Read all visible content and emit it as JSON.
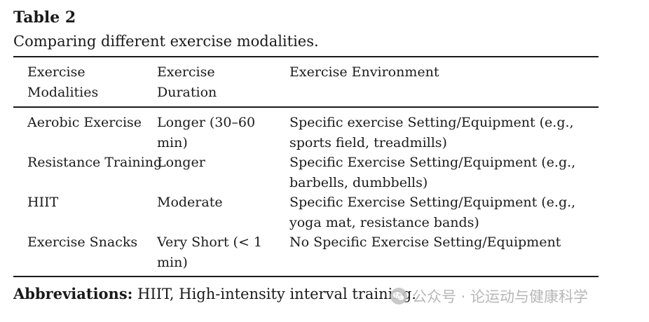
{
  "table": {
    "label": "Table 2",
    "caption": "Comparing different exercise modalities.",
    "headers": [
      "Exercise\nModalities",
      "Exercise\nDuration",
      "Exercise Environment"
    ],
    "rows": [
      {
        "modality": "Aerobic Exercise",
        "duration": "Longer (30–60 min)",
        "environment": "Specific exercise Setting/Equipment (e.g., sports field, treadmills)"
      },
      {
        "modality": "Resistance Training",
        "duration": "Longer",
        "environment": "Specific Exercise Setting/Equipment (e.g., barbells, dumbbells)"
      },
      {
        "modality": "HIIT",
        "duration": "Moderate",
        "environment": "Specific Exercise Setting/Equipment (e.g., yoga mat, resistance bands)"
      },
      {
        "modality": "Exercise Snacks",
        "duration": "Very Short (< 1 min)",
        "environment": "No Specific Exercise Setting/Equipment"
      }
    ]
  },
  "footnote": {
    "label": "Abbreviations:",
    "text": " HIIT, High-intensity interval training."
  },
  "watermark": {
    "icon": "wechat-icon",
    "text": "公众号 · 论运动与健康科学"
  }
}
